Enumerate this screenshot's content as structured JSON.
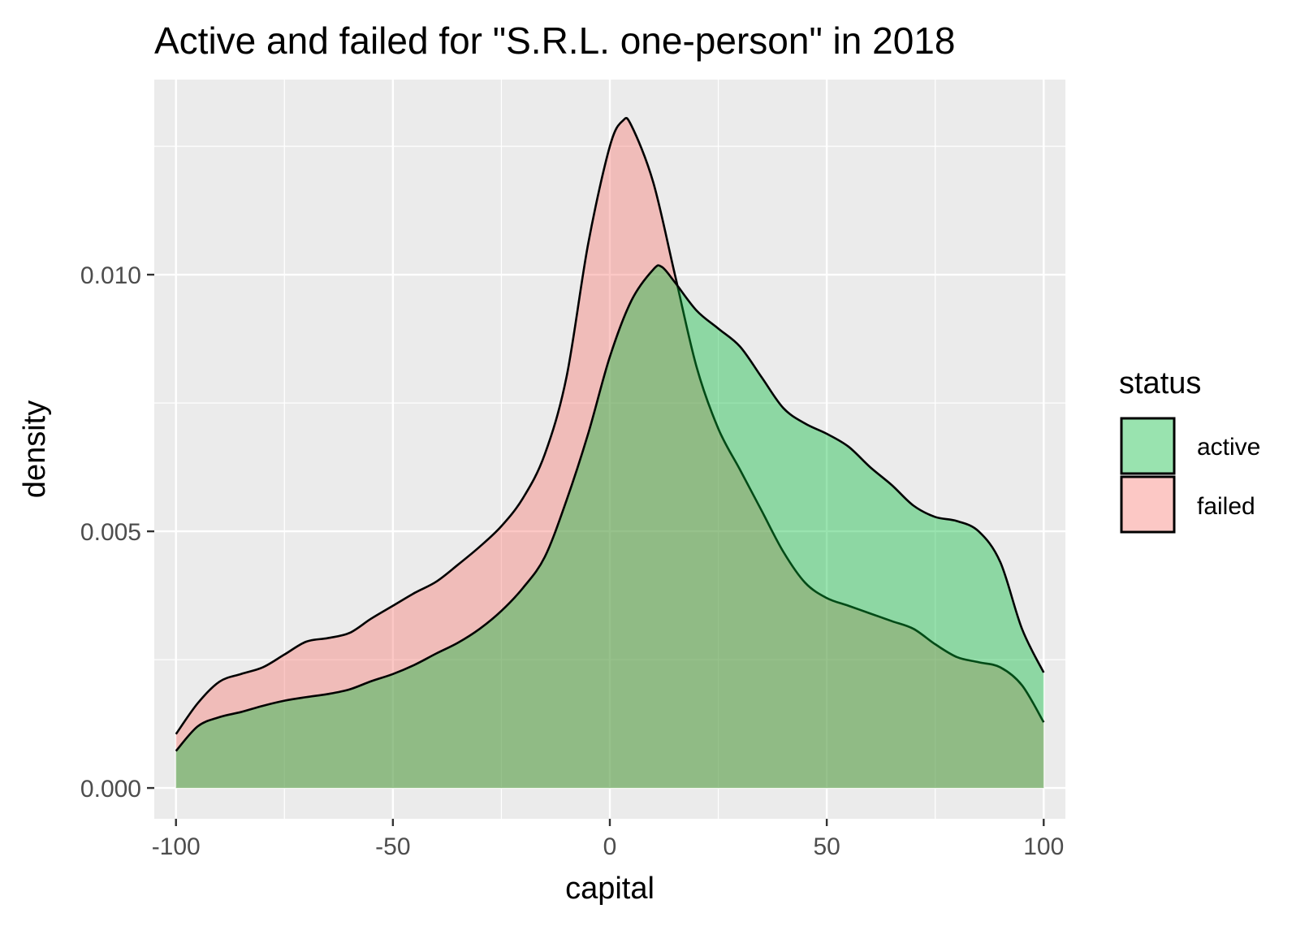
{
  "chart_data": {
    "type": "area",
    "title": "Active and failed for \"S.R.L. one-person\" in 2018",
    "xlabel": "capital",
    "ylabel": "density",
    "xlim": [
      -105,
      105
    ],
    "ylim": [
      -0.0006,
      0.0138
    ],
    "x_ticks": [
      -100,
      -50,
      0,
      50,
      100
    ],
    "x_tick_labels": [
      "-100",
      "-50",
      "0",
      "50",
      "100"
    ],
    "y_ticks": [
      0.0,
      0.005,
      0.01
    ],
    "y_tick_labels": [
      "0.000",
      "0.005",
      "0.010"
    ],
    "grid": true,
    "legend": {
      "title": "status",
      "position": "right",
      "entries": [
        "active",
        "failed"
      ]
    },
    "series": [
      {
        "name": "failed",
        "color": "#F8766D",
        "x": [
          -100,
          -95,
          -90,
          -85,
          -80,
          -75,
          -70,
          -65,
          -60,
          -55,
          -50,
          -45,
          -40,
          -35,
          -30,
          -25,
          -20,
          -15,
          -10,
          -5,
          0,
          3,
          5,
          10,
          15,
          20,
          25,
          30,
          35,
          40,
          45,
          50,
          55,
          60,
          65,
          70,
          75,
          80,
          85,
          90,
          95,
          100
        ],
        "values": [
          0.00105,
          0.00165,
          0.00207,
          0.00222,
          0.00235,
          0.0026,
          0.00285,
          0.00292,
          0.00302,
          0.0033,
          0.00355,
          0.0038,
          0.00402,
          0.00435,
          0.0047,
          0.0051,
          0.00565,
          0.0065,
          0.008,
          0.0106,
          0.0125,
          0.013,
          0.0129,
          0.0118,
          0.01,
          0.0082,
          0.007,
          0.0062,
          0.0054,
          0.0046,
          0.004,
          0.0037,
          0.00355,
          0.0034,
          0.00325,
          0.0031,
          0.0028,
          0.00255,
          0.00245,
          0.00235,
          0.002,
          0.00128
        ]
      },
      {
        "name": "active",
        "color": "#00BA38",
        "x": [
          -100,
          -95,
          -90,
          -85,
          -80,
          -75,
          -70,
          -65,
          -60,
          -55,
          -50,
          -45,
          -40,
          -35,
          -30,
          -25,
          -20,
          -15,
          -10,
          -5,
          0,
          5,
          10,
          12,
          15,
          20,
          25,
          30,
          35,
          40,
          45,
          50,
          55,
          60,
          65,
          70,
          75,
          80,
          85,
          90,
          95,
          100
        ],
        "values": [
          0.00072,
          0.0012,
          0.00138,
          0.00148,
          0.0016,
          0.0017,
          0.00177,
          0.00183,
          0.00192,
          0.00208,
          0.00222,
          0.0024,
          0.00262,
          0.00283,
          0.0031,
          0.00345,
          0.0039,
          0.0045,
          0.0056,
          0.0069,
          0.0084,
          0.0095,
          0.0101,
          0.01015,
          0.00985,
          0.0093,
          0.00895,
          0.0086,
          0.008,
          0.0074,
          0.0071,
          0.0069,
          0.00665,
          0.00625,
          0.0059,
          0.0055,
          0.00528,
          0.0052,
          0.005,
          0.0044,
          0.0031,
          0.00225
        ]
      }
    ]
  }
}
